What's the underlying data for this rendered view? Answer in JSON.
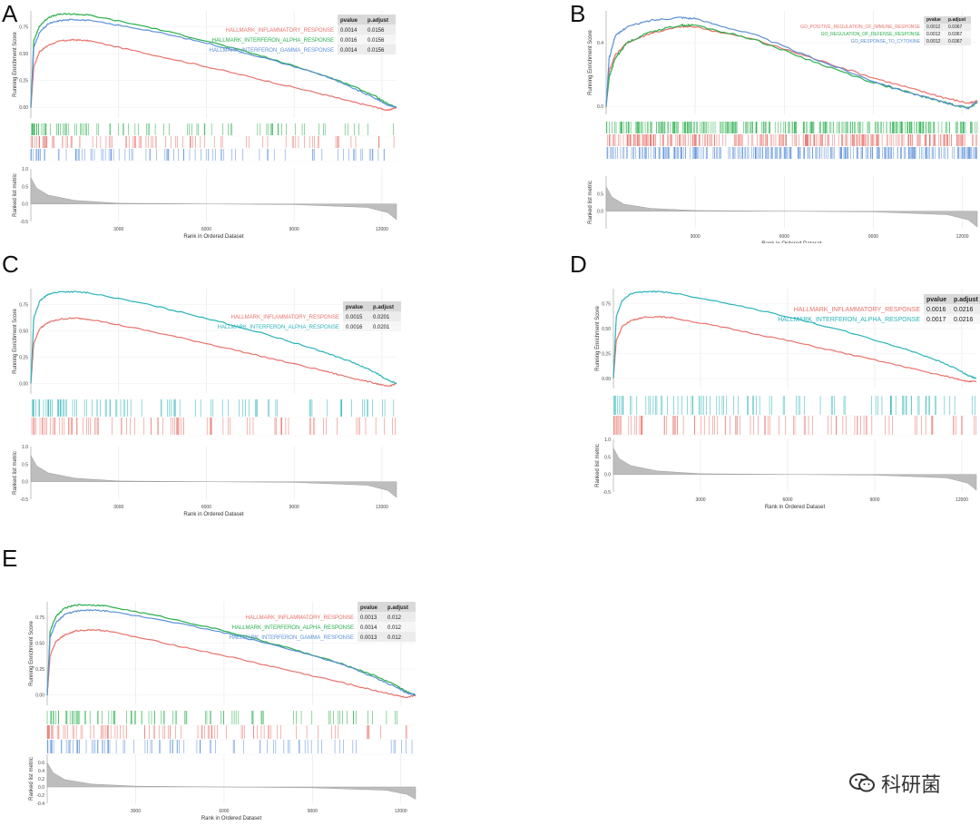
{
  "chart_data": [
    {
      "panel": "A",
      "type": "line",
      "ylabel_top": "Running Enrichment Score",
      "ylabel_bottom": "Ranked list metric",
      "xlabel": "Rank in Ordered Dataset",
      "xlim": [
        0,
        12500
      ],
      "es_ylim": [
        -0.1,
        0.9
      ],
      "es_ticks": [
        0.0,
        0.25,
        0.5,
        0.75
      ],
      "es_tick_labels": [
        "0.00",
        "0.25",
        "0.50",
        "0.75"
      ],
      "metric_ylim": [
        -0.5,
        1.0
      ],
      "metric_ticks": [
        1.0,
        0.5,
        0.0,
        -0.5
      ],
      "metric_tick_labels": [
        "1.0",
        "0.5",
        "0.0",
        "-0.5"
      ],
      "xticks": [
        3000,
        6000,
        9000,
        12000
      ],
      "xtick_labels": [
        "3000",
        "6000",
        "9000",
        "12000"
      ],
      "table_headers": [
        "pvalue",
        "p.adjust"
      ],
      "series": [
        {
          "name": "HALLMARK_INFLAMMATORY_RESPONSE",
          "color": "#e8726b",
          "pvalue": "0.0014",
          "padjust": "0.0156",
          "x": [
            0,
            100,
            300,
            600,
            1000,
            1500,
            2000,
            4000,
            6000,
            8000,
            10000,
            11000,
            11800,
            12200,
            12500
          ],
          "y": [
            0.0,
            0.38,
            0.52,
            0.58,
            0.62,
            0.63,
            0.62,
            0.5,
            0.38,
            0.25,
            0.12,
            0.05,
            0.0,
            -0.03,
            0.0
          ]
        },
        {
          "name": "HALLMARK_INTERFERON_ALPHA_RESPONSE",
          "color": "#27ae4a",
          "pvalue": "0.0016",
          "padjust": "0.0156",
          "x": [
            0,
            100,
            300,
            600,
            1000,
            1500,
            2000,
            4000,
            6000,
            8000,
            10000,
            11000,
            11800,
            12200,
            12500
          ],
          "y": [
            0.0,
            0.62,
            0.76,
            0.84,
            0.87,
            0.87,
            0.86,
            0.75,
            0.62,
            0.47,
            0.3,
            0.2,
            0.1,
            0.03,
            0.0
          ]
        },
        {
          "name": "HALLMARK_INTERFERON_GAMMA_RESPONSE",
          "color": "#5b8fd8",
          "pvalue": "0.0014",
          "padjust": "0.0156",
          "x": [
            0,
            100,
            300,
            600,
            1000,
            1500,
            2000,
            4000,
            6000,
            8000,
            10000,
            11000,
            11800,
            12200,
            12500
          ],
          "y": [
            0.0,
            0.56,
            0.7,
            0.78,
            0.81,
            0.82,
            0.81,
            0.72,
            0.6,
            0.46,
            0.3,
            0.18,
            0.08,
            0.02,
            0.0
          ]
        }
      ],
      "metric": {
        "x": [
          0,
          200,
          600,
          1500,
          3000,
          6000,
          9000,
          11500,
          12200,
          12500
        ],
        "y": [
          0.75,
          0.45,
          0.25,
          0.1,
          0.02,
          0.0,
          -0.02,
          -0.1,
          -0.25,
          -0.45
        ]
      }
    },
    {
      "panel": "B",
      "type": "line",
      "ylabel_top": "Running Enrichment Score",
      "ylabel_bottom": "Ranked list metric",
      "xlabel": "Rank in Ordered Dataset",
      "xlim": [
        0,
        12500
      ],
      "es_ylim": [
        -0.05,
        0.6
      ],
      "es_ticks": [
        0.0,
        0.4
      ],
      "es_tick_labels": [
        "0.0",
        "0.4"
      ],
      "metric_ylim": [
        -0.5,
        1.0
      ],
      "metric_ticks": [
        0.5,
        0.0
      ],
      "metric_tick_labels": [
        "0.5",
        "0.0"
      ],
      "xticks": [
        3000,
        6000,
        9000,
        12000
      ],
      "xtick_labels": [
        "3000",
        "6000",
        "9000",
        "12000"
      ],
      "table_headers": [
        "pvalue",
        "p.adjust"
      ],
      "series": [
        {
          "name": "GO_POSITIVE_REGULATION_OF_IMMUNE_RESPONSE",
          "color": "#e8726b",
          "pvalue": "0.0012",
          "padjust": "0.0367",
          "x": [
            0,
            100,
            300,
            700,
            1500,
            2500,
            3000,
            5000,
            7000,
            9000,
            10500,
            11500,
            12200,
            12500
          ],
          "y": [
            0.0,
            0.22,
            0.32,
            0.4,
            0.46,
            0.5,
            0.5,
            0.42,
            0.3,
            0.18,
            0.1,
            0.05,
            0.02,
            0.03
          ]
        },
        {
          "name": "GO_REGULATION_OF_DEFENSE_RESPONSE",
          "color": "#27ae4a",
          "pvalue": "0.0012",
          "padjust": "0.0367",
          "x": [
            0,
            100,
            300,
            700,
            1500,
            2500,
            3000,
            5000,
            7000,
            9000,
            10500,
            11500,
            12200,
            12500
          ],
          "y": [
            0.0,
            0.18,
            0.3,
            0.4,
            0.47,
            0.51,
            0.51,
            0.42,
            0.28,
            0.15,
            0.07,
            0.02,
            -0.01,
            0.02
          ]
        },
        {
          "name": "GO_RESPONSE_TO_CYTOKINE",
          "color": "#5b8fd8",
          "pvalue": "0.0012",
          "padjust": "0.0367",
          "x": [
            0,
            100,
            300,
            700,
            1500,
            2500,
            3000,
            5000,
            7000,
            9000,
            10500,
            11500,
            12200,
            12500
          ],
          "y": [
            0.0,
            0.3,
            0.44,
            0.5,
            0.54,
            0.56,
            0.55,
            0.45,
            0.3,
            0.16,
            0.07,
            0.02,
            -0.01,
            0.03
          ]
        }
      ],
      "metric": {
        "x": [
          0,
          200,
          600,
          1500,
          3000,
          6000,
          9000,
          11500,
          12200,
          12500
        ],
        "y": [
          0.7,
          0.4,
          0.2,
          0.08,
          0.02,
          0.0,
          -0.02,
          -0.1,
          -0.25,
          -0.45
        ]
      }
    },
    {
      "panel": "C",
      "type": "line",
      "ylabel_top": "Running Enrichment Score",
      "ylabel_bottom": "Ranked list metric",
      "xlabel": "Rank in Ordered Dataset",
      "xlim": [
        0,
        12500
      ],
      "es_ylim": [
        -0.1,
        0.9
      ],
      "es_ticks": [
        0.0,
        0.25,
        0.5,
        0.75
      ],
      "es_tick_labels": [
        "0.00",
        "0.25",
        "0.50",
        "0.75"
      ],
      "metric_ylim": [
        -0.5,
        1.0
      ],
      "metric_ticks": [
        1.0,
        0.5,
        0.0,
        -0.5
      ],
      "metric_tick_labels": [
        "1.0",
        "0.5",
        "0.0",
        "-0.5"
      ],
      "xticks": [
        3000,
        6000,
        9000,
        12000
      ],
      "xtick_labels": [
        "3000",
        "6000",
        "9000",
        "12000"
      ],
      "table_headers": [
        "pvalue",
        "p.adjust"
      ],
      "series": [
        {
          "name": "HALLMARK_INFLAMMATORY_RESPONSE",
          "color": "#e8726b",
          "pvalue": "0.0015",
          "padjust": "0.0201",
          "x": [
            0,
            100,
            300,
            600,
            1000,
            1500,
            2000,
            4000,
            6000,
            8000,
            10000,
            11000,
            11800,
            12200,
            12500
          ],
          "y": [
            0.0,
            0.38,
            0.52,
            0.58,
            0.61,
            0.62,
            0.61,
            0.5,
            0.38,
            0.25,
            0.12,
            0.05,
            0.0,
            -0.03,
            0.0
          ]
        },
        {
          "name": "HALLMARK_INTERFERON_ALPHA_RESPONSE",
          "color": "#2bb3b8",
          "pvalue": "0.0016",
          "padjust": "0.0201",
          "x": [
            0,
            100,
            300,
            600,
            1000,
            1500,
            2000,
            4000,
            6000,
            8000,
            10000,
            11000,
            11800,
            12200,
            12500
          ],
          "y": [
            0.0,
            0.62,
            0.78,
            0.85,
            0.87,
            0.87,
            0.86,
            0.75,
            0.62,
            0.47,
            0.3,
            0.2,
            0.1,
            0.03,
            0.0
          ]
        }
      ],
      "metric": {
        "x": [
          0,
          200,
          600,
          1500,
          3000,
          6000,
          9000,
          11500,
          12200,
          12500
        ],
        "y": [
          0.75,
          0.45,
          0.25,
          0.1,
          0.02,
          0.0,
          -0.02,
          -0.1,
          -0.25,
          -0.45
        ]
      }
    },
    {
      "panel": "D",
      "type": "line",
      "ylabel_top": "Running Enrichment Score",
      "ylabel_bottom": "Ranked list metric",
      "xlabel": "Rank in Ordered Dataset",
      "xlim": [
        0,
        12500
      ],
      "es_ylim": [
        -0.1,
        0.9
      ],
      "es_ticks": [
        0.0,
        0.25,
        0.5,
        0.75
      ],
      "es_tick_labels": [
        "0.00",
        "0.25",
        "0.50",
        "0.75"
      ],
      "metric_ylim": [
        -0.5,
        1.0
      ],
      "metric_ticks": [
        1.0,
        0.5,
        0.0,
        -0.5
      ],
      "metric_tick_labels": [
        "1.0",
        "0.5",
        "0.0",
        "-0.5"
      ],
      "xticks": [
        3000,
        6000,
        9000,
        12000
      ],
      "xtick_labels": [
        "3000",
        "6000",
        "9000",
        "12000"
      ],
      "table_headers": [
        "pvalue",
        "p.adjust"
      ],
      "series": [
        {
          "name": "HALLMARK_INFLAMMATORY_RESPONSE",
          "color": "#e8726b",
          "pvalue": "0.0016",
          "padjust": "0.0216",
          "x": [
            0,
            100,
            300,
            600,
            1000,
            1500,
            2000,
            4000,
            6000,
            8000,
            10000,
            11000,
            11800,
            12200,
            12500
          ],
          "y": [
            0.0,
            0.38,
            0.52,
            0.58,
            0.61,
            0.62,
            0.61,
            0.5,
            0.38,
            0.25,
            0.12,
            0.05,
            0.0,
            -0.03,
            -0.03
          ]
        },
        {
          "name": "HALLMARK_INTERFERON_ALPHA_RESPONSE",
          "color": "#2bb3b8",
          "pvalue": "0.0017",
          "padjust": "0.0216",
          "x": [
            0,
            100,
            300,
            600,
            1000,
            1500,
            2000,
            4000,
            6000,
            8000,
            10000,
            11000,
            11800,
            12200,
            12500
          ],
          "y": [
            0.0,
            0.62,
            0.78,
            0.85,
            0.87,
            0.87,
            0.86,
            0.75,
            0.62,
            0.47,
            0.3,
            0.2,
            0.1,
            0.03,
            0.0
          ]
        }
      ],
      "metric": {
        "x": [
          0,
          200,
          600,
          1500,
          3000,
          6000,
          9000,
          11500,
          12200,
          12500
        ],
        "y": [
          0.75,
          0.45,
          0.25,
          0.1,
          0.02,
          0.0,
          -0.02,
          -0.1,
          -0.25,
          -0.45
        ]
      }
    },
    {
      "panel": "E",
      "type": "line",
      "ylabel_top": "Running Enrichment Score",
      "ylabel_bottom": "Ranked list metric",
      "xlabel": "Rank in Ordered Dataset",
      "xlim": [
        0,
        12500
      ],
      "es_ylim": [
        -0.1,
        0.9
      ],
      "es_ticks": [
        0.0,
        0.25,
        0.5,
        0.75
      ],
      "es_tick_labels": [
        "0.00",
        "0.25",
        "0.50",
        "0.75"
      ],
      "metric_ylim": [
        -0.4,
        0.8
      ],
      "metric_ticks": [
        0.6,
        0.4,
        0.2,
        0.0,
        -0.2,
        -0.4
      ],
      "metric_tick_labels": [
        "0.6",
        "0.4",
        "0.2",
        "0.0",
        "-0.2",
        "-0.4"
      ],
      "xticks": [
        3000,
        6000,
        9000,
        12000
      ],
      "xtick_labels": [
        "3000",
        "6000",
        "9000",
        "12000"
      ],
      "table_headers": [
        "pvalue",
        "p.adjust"
      ],
      "series": [
        {
          "name": "HALLMARK_INFLAMMATORY_RESPONSE",
          "color": "#e8726b",
          "pvalue": "0.0013",
          "padjust": "0.012",
          "x": [
            0,
            100,
            300,
            600,
            1000,
            1500,
            2000,
            4000,
            6000,
            8000,
            10000,
            11000,
            11800,
            12200,
            12500
          ],
          "y": [
            0.0,
            0.38,
            0.52,
            0.58,
            0.62,
            0.63,
            0.62,
            0.5,
            0.38,
            0.25,
            0.12,
            0.05,
            0.0,
            -0.03,
            0.0
          ]
        },
        {
          "name": "HALLMARK_INTERFERON_ALPHA_RESPONSE",
          "color": "#27ae4a",
          "pvalue": "0.0014",
          "padjust": "0.012",
          "x": [
            0,
            100,
            300,
            600,
            1000,
            1500,
            2000,
            4000,
            6000,
            8000,
            10000,
            11000,
            11800,
            12200,
            12500
          ],
          "y": [
            0.0,
            0.62,
            0.76,
            0.84,
            0.87,
            0.87,
            0.86,
            0.75,
            0.62,
            0.47,
            0.3,
            0.2,
            0.1,
            0.03,
            0.0
          ]
        },
        {
          "name": "HALLMARK_INTERFERON_GAMMA_RESPONSE",
          "color": "#5b8fd8",
          "pvalue": "0.0013",
          "padjust": "0.012",
          "x": [
            0,
            100,
            300,
            600,
            1000,
            1500,
            2000,
            4000,
            6000,
            8000,
            10000,
            11000,
            11800,
            12200,
            12500
          ],
          "y": [
            0.0,
            0.56,
            0.7,
            0.78,
            0.81,
            0.82,
            0.81,
            0.72,
            0.6,
            0.46,
            0.3,
            0.18,
            0.08,
            0.02,
            0.0
          ]
        }
      ],
      "metric": {
        "x": [
          0,
          200,
          600,
          1500,
          3000,
          6000,
          9000,
          11500,
          12200,
          12500
        ],
        "y": [
          0.6,
          0.35,
          0.18,
          0.07,
          0.02,
          0.0,
          -0.02,
          -0.08,
          -0.18,
          -0.3
        ]
      }
    }
  ],
  "watermark": {
    "text": "科研菌",
    "icon": "wechat-icon"
  }
}
